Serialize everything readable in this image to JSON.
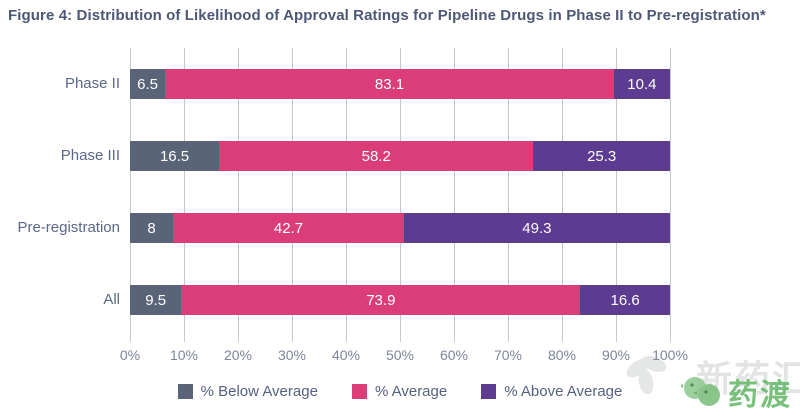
{
  "title": "Figure 4: Distribution of Likelihood of Approval Ratings for Pipeline Drugs in Phase II to Pre-registration*",
  "chart_data": {
    "type": "bar",
    "orientation": "horizontal",
    "stacked": true,
    "title": "Figure 4: Distribution of Likelihood of Approval Ratings for Pipeline Drugs in Phase II to Pre-registration*",
    "categories": [
      "Phase II",
      "Phase III",
      "Pre-registration",
      "All"
    ],
    "series": [
      {
        "name": "% Below Average",
        "color": "#5a6478",
        "values": [
          6.5,
          16.5,
          8,
          9.5
        ]
      },
      {
        "name": "% Average",
        "color": "#da3d78",
        "values": [
          83.1,
          58.2,
          42.7,
          73.9
        ]
      },
      {
        "name": "% Above Average",
        "color": "#5c3b90",
        "values": [
          10.4,
          25.3,
          49.3,
          16.6
        ]
      }
    ],
    "x_ticks": [
      "0%",
      "10%",
      "20%",
      "30%",
      "40%",
      "50%",
      "60%",
      "70%",
      "80%",
      "90%",
      "100%"
    ],
    "xlabel": "",
    "ylabel": "",
    "xlim": [
      0,
      100
    ],
    "grid": true,
    "legend_position": "bottom",
    "value_labels": "inside-white"
  },
  "watermark": {
    "background_text": "新药汇",
    "logo_text": "药渡"
  }
}
